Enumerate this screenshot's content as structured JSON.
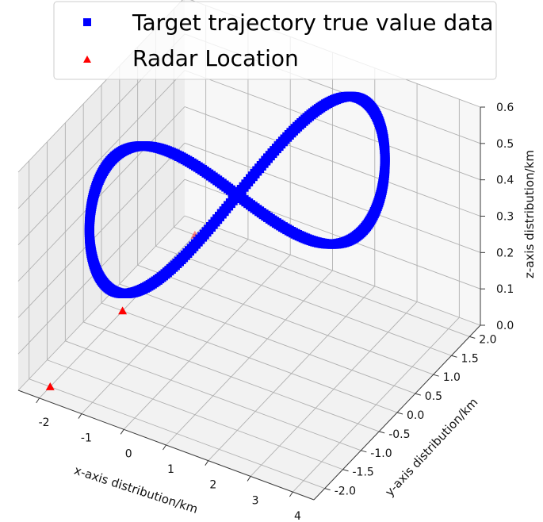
{
  "chart_data": {
    "type": "scatter3d",
    "title": "",
    "xlabel": "x-axis distribution/km",
    "ylabel": "y-axis distribution/km",
    "zlabel": "z-axis distribution/km",
    "xlim": [
      -2.5,
      4.5
    ],
    "ylim": [
      -2.3,
      2.3
    ],
    "zlim": [
      0.0,
      0.6
    ],
    "xticks": [
      "-2",
      "-1",
      "0",
      "1",
      "2",
      "3",
      "4"
    ],
    "yticks": [
      "-2.0",
      "-1.5",
      "-1.0",
      "-0.5",
      "0.0",
      "0.5",
      "1.0",
      "1.5",
      "2.0"
    ],
    "zticks": [
      "0.0",
      "0.1",
      "0.2",
      "0.3",
      "0.4",
      "0.5",
      "0.6"
    ],
    "grid": true,
    "legend_position": "top",
    "series": [
      {
        "name": "Target trajectory true value data",
        "marker": "square",
        "color": "#0000ff",
        "description_of_shape": "figure-eight loop centered near (0.5, 0.25, 0.4)",
        "x_center": 0.5,
        "x_amplitude": 2.0,
        "y_center": 0.25,
        "y_amplitude": 1.75,
        "z_center": 0.4,
        "z_amplitude": 0.2
      },
      {
        "name": "Radar Location",
        "marker": "triangle",
        "color": "#ff0000",
        "points": [
          {
            "x": -2.0,
            "y": -2.0,
            "z": 0.0
          },
          {
            "x": -2.0,
            "y": 0.0,
            "z": 0.0
          },
          {
            "x": -2.0,
            "y": 2.0,
            "z": 0.0
          }
        ]
      }
    ]
  }
}
